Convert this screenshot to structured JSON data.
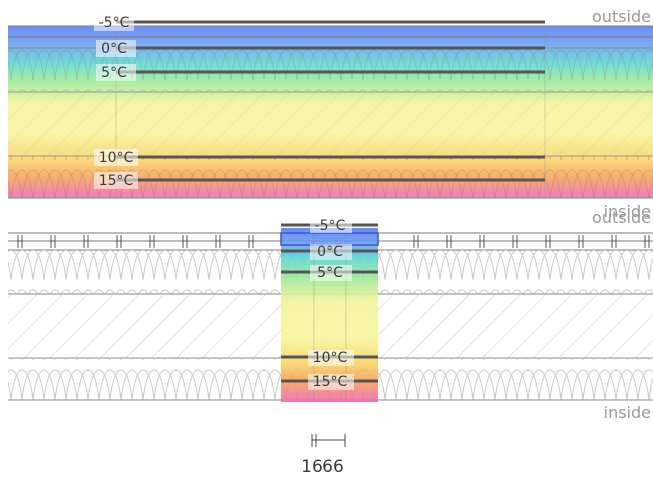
{
  "top_section": {
    "outside_label": "outside",
    "inside_label": "inside",
    "isotherms": [
      {
        "label": "-5°C",
        "temperature": -5
      },
      {
        "label": "0°C",
        "temperature": 0
      },
      {
        "label": "5°C",
        "temperature": 5
      },
      {
        "label": "10°C",
        "temperature": 10
      },
      {
        "label": "15°C",
        "temperature": 15
      }
    ]
  },
  "bottom_section": {
    "outside_label": "outside",
    "inside_label": "inside",
    "isotherms": [
      {
        "label": "-5°C",
        "temperature": -5
      },
      {
        "label": "0°C",
        "temperature": 0
      },
      {
        "label": "5°C",
        "temperature": 5
      },
      {
        "label": "10°C",
        "temperature": 10
      },
      {
        "label": "15°C",
        "temperature": 15
      }
    ]
  },
  "dimension": {
    "value_a": "16",
    "value_b": "66"
  },
  "colors": {
    "cold": "#5b7df0",
    "cool": "#5fd8d0",
    "mild": "#9be89a",
    "neutral": "#f7f59a",
    "warm": "#f6a35a",
    "hot": "#ee6ab2",
    "isotherm_line": "#555555",
    "layer_line": "#8a8a8a"
  }
}
